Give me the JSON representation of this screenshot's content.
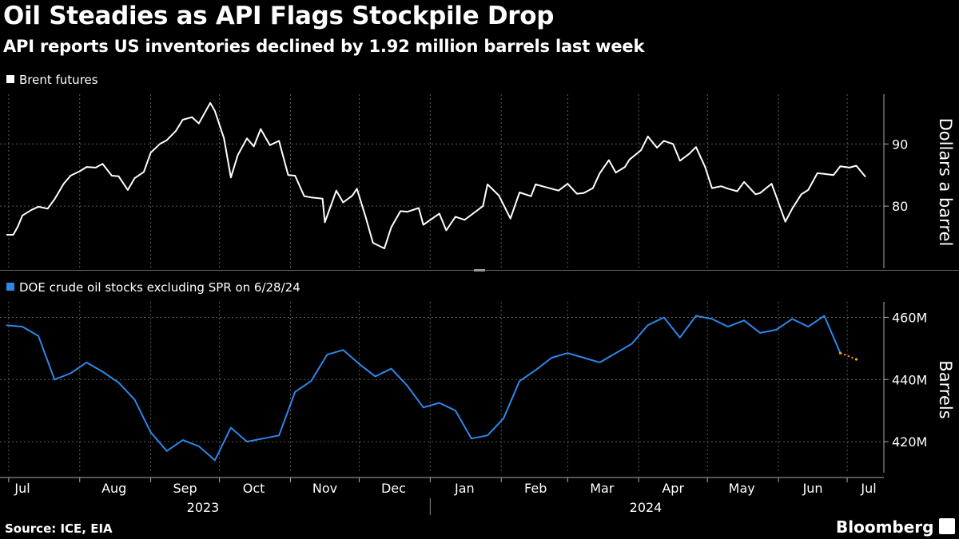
{
  "title": "Oil Steadies as API Flags Stockpile Drop",
  "subtitle": "API reports US inventories declined by 1.92 million barrels last week",
  "source": "Source: ICE, EIA",
  "brand": "Bloomberg",
  "colors": {
    "background": "#000000",
    "brent": "#ffffff",
    "stocks": "#2e87e8",
    "projection": "#f5a623",
    "grid": "#666666"
  },
  "chart_data": [
    {
      "type": "line",
      "legend": "Brent futures",
      "ylabel": "Dollars a barrel",
      "ylim": [
        70,
        98
      ],
      "yticks": [
        80,
        90
      ],
      "grid": true,
      "legend_position": "top-left",
      "x_time_label": "date (approx.)",
      "series": [
        {
          "name": "Brent futures",
          "points": [
            [
              "2023-06-30",
              75.4
            ],
            [
              "2023-07-03",
              75.4
            ],
            [
              "2023-07-05",
              76.7
            ],
            [
              "2023-07-07",
              78.5
            ],
            [
              "2023-07-11",
              79.4
            ],
            [
              "2023-07-14",
              79.9
            ],
            [
              "2023-07-18",
              79.6
            ],
            [
              "2023-07-21",
              81.1
            ],
            [
              "2023-07-25",
              83.6
            ],
            [
              "2023-07-28",
              84.9
            ],
            [
              "2023-08-01",
              85.6
            ],
            [
              "2023-08-04",
              86.3
            ],
            [
              "2023-08-08",
              86.2
            ],
            [
              "2023-08-11",
              86.8
            ],
            [
              "2023-08-15",
              84.9
            ],
            [
              "2023-08-18",
              84.8
            ],
            [
              "2023-08-22",
              82.6
            ],
            [
              "2023-08-25",
              84.5
            ],
            [
              "2023-08-29",
              85.5
            ],
            [
              "2023-09-01",
              88.6
            ],
            [
              "2023-09-05",
              90.0
            ],
            [
              "2023-09-08",
              90.6
            ],
            [
              "2023-09-12",
              92.1
            ],
            [
              "2023-09-15",
              93.9
            ],
            [
              "2023-09-19",
              94.3
            ],
            [
              "2023-09-22",
              93.3
            ],
            [
              "2023-09-27",
              96.6
            ],
            [
              "2023-09-29",
              95.3
            ],
            [
              "2023-10-03",
              90.9
            ],
            [
              "2023-10-06",
              84.6
            ],
            [
              "2023-10-09",
              88.2
            ],
            [
              "2023-10-13",
              90.9
            ],
            [
              "2023-10-16",
              89.6
            ],
            [
              "2023-10-19",
              92.4
            ],
            [
              "2023-10-23",
              89.8
            ],
            [
              "2023-10-27",
              90.5
            ],
            [
              "2023-10-31",
              85.0
            ],
            [
              "2023-11-03",
              84.9
            ],
            [
              "2023-11-07",
              81.6
            ],
            [
              "2023-11-10",
              81.4
            ],
            [
              "2023-11-15",
              81.2
            ],
            [
              "2023-11-16",
              77.4
            ],
            [
              "2023-11-21",
              82.5
            ],
            [
              "2023-11-24",
              80.6
            ],
            [
              "2023-11-28",
              81.7
            ],
            [
              "2023-11-30",
              82.8
            ],
            [
              "2023-12-04",
              78.0
            ],
            [
              "2023-12-07",
              74.1
            ],
            [
              "2023-12-12",
              73.2
            ],
            [
              "2023-12-15",
              76.6
            ],
            [
              "2023-12-19",
              79.2
            ],
            [
              "2023-12-22",
              79.1
            ],
            [
              "2023-12-27",
              79.7
            ],
            [
              "2023-12-29",
              77.0
            ],
            [
              "2024-01-03",
              78.3
            ],
            [
              "2024-01-05",
              78.8
            ],
            [
              "2024-01-08",
              76.1
            ],
            [
              "2024-01-12",
              78.3
            ],
            [
              "2024-01-16",
              77.8
            ],
            [
              "2024-01-19",
              78.6
            ],
            [
              "2024-01-24",
              80.0
            ],
            [
              "2024-01-26",
              83.5
            ],
            [
              "2024-01-31",
              81.7
            ],
            [
              "2024-02-05",
              78.0
            ],
            [
              "2024-02-09",
              82.2
            ],
            [
              "2024-02-14",
              81.6
            ],
            [
              "2024-02-16",
              83.5
            ],
            [
              "2024-02-21",
              83.0
            ],
            [
              "2024-02-26",
              82.5
            ],
            [
              "2024-03-01",
              83.6
            ],
            [
              "2024-03-05",
              82.0
            ],
            [
              "2024-03-08",
              82.1
            ],
            [
              "2024-03-12",
              82.9
            ],
            [
              "2024-03-15",
              85.3
            ],
            [
              "2024-03-19",
              87.4
            ],
            [
              "2024-03-22",
              85.4
            ],
            [
              "2024-03-26",
              86.3
            ],
            [
              "2024-03-28",
              87.5
            ],
            [
              "2024-04-02",
              89.0
            ],
            [
              "2024-04-05",
              91.2
            ],
            [
              "2024-04-09",
              89.4
            ],
            [
              "2024-04-12",
              90.5
            ],
            [
              "2024-04-16",
              90.0
            ],
            [
              "2024-04-19",
              87.3
            ],
            [
              "2024-04-23",
              88.4
            ],
            [
              "2024-04-26",
              89.5
            ],
            [
              "2024-04-30",
              86.3
            ],
            [
              "2024-05-03",
              82.9
            ],
            [
              "2024-05-07",
              83.2
            ],
            [
              "2024-05-10",
              82.8
            ],
            [
              "2024-05-14",
              82.4
            ],
            [
              "2024-05-17",
              83.9
            ],
            [
              "2024-05-22",
              81.9
            ],
            [
              "2024-05-24",
              82.1
            ],
            [
              "2024-05-29",
              83.6
            ],
            [
              "2024-05-31",
              81.6
            ],
            [
              "2024-06-04",
              77.5
            ],
            [
              "2024-06-07",
              79.6
            ],
            [
              "2024-06-11",
              81.9
            ],
            [
              "2024-06-14",
              82.6
            ],
            [
              "2024-06-18",
              85.3
            ],
            [
              "2024-06-21",
              85.2
            ],
            [
              "2024-06-25",
              85.0
            ],
            [
              "2024-06-28",
              86.4
            ],
            [
              "2024-07-02",
              86.2
            ],
            [
              "2024-07-05",
              86.5
            ],
            [
              "2024-07-09",
              84.7
            ]
          ]
        }
      ]
    },
    {
      "type": "line",
      "legend": "DOE crude oil stocks excluding SPR on 6/28/24",
      "ylabel": "Barrels",
      "ylim": [
        410,
        465
      ],
      "yticks": [
        420,
        440,
        460
      ],
      "ytick_labels": [
        "420M",
        "440M",
        "460M"
      ],
      "grid": true,
      "legend_position": "top-left",
      "series": [
        {
          "name": "DOE crude oil stocks excluding SPR",
          "points": [
            [
              "2023-06-30",
              457.5
            ],
            [
              "2023-07-07",
              457.0
            ],
            [
              "2023-07-14",
              454.0
            ],
            [
              "2023-07-21",
              440.0
            ],
            [
              "2023-07-28",
              442.0
            ],
            [
              "2023-08-04",
              445.5
            ],
            [
              "2023-08-11",
              442.5
            ],
            [
              "2023-08-18",
              439.0
            ],
            [
              "2023-08-25",
              433.5
            ],
            [
              "2023-09-01",
              423.0
            ],
            [
              "2023-09-08",
              417.0
            ],
            [
              "2023-09-15",
              420.5
            ],
            [
              "2023-09-22",
              418.5
            ],
            [
              "2023-09-29",
              414.0
            ],
            [
              "2023-10-06",
              424.5
            ],
            [
              "2023-10-13",
              420.0
            ],
            [
              "2023-10-20",
              421.0
            ],
            [
              "2023-10-27",
              422.0
            ],
            [
              "2023-11-03",
              436.0
            ],
            [
              "2023-11-10",
              439.5
            ],
            [
              "2023-11-17",
              448.0
            ],
            [
              "2023-11-24",
              449.5
            ],
            [
              "2023-12-01",
              445.0
            ],
            [
              "2023-12-08",
              441.0
            ],
            [
              "2023-12-15",
              443.5
            ],
            [
              "2023-12-22",
              438.0
            ],
            [
              "2023-12-29",
              431.0
            ],
            [
              "2024-01-05",
              432.5
            ],
            [
              "2024-01-12",
              430.0
            ],
            [
              "2024-01-19",
              421.0
            ],
            [
              "2024-01-26",
              422.0
            ],
            [
              "2024-02-02",
              427.5
            ],
            [
              "2024-02-09",
              439.5
            ],
            [
              "2024-02-16",
              443.0
            ],
            [
              "2024-02-23",
              447.0
            ],
            [
              "2024-03-01",
              448.5
            ],
            [
              "2024-03-08",
              447.0
            ],
            [
              "2024-03-15",
              445.5
            ],
            [
              "2024-03-22",
              448.5
            ],
            [
              "2024-03-29",
              451.5
            ],
            [
              "2024-04-05",
              457.5
            ],
            [
              "2024-04-12",
              460.0
            ],
            [
              "2024-04-19",
              453.5
            ],
            [
              "2024-04-26",
              460.5
            ],
            [
              "2024-05-03",
              459.5
            ],
            [
              "2024-05-10",
              457.0
            ],
            [
              "2024-05-17",
              459.0
            ],
            [
              "2024-05-24",
              455.0
            ],
            [
              "2024-05-31",
              456.0
            ],
            [
              "2024-06-07",
              459.5
            ],
            [
              "2024-06-14",
              457.0
            ],
            [
              "2024-06-21",
              460.5
            ],
            [
              "2024-06-28",
              448.5
            ]
          ]
        },
        {
          "name": "projection",
          "style": "dotted",
          "points": [
            [
              "2024-06-28",
              448.5
            ],
            [
              "2024-07-05",
              446.5
            ]
          ]
        }
      ]
    }
  ],
  "x_axis": {
    "months": [
      "Jul",
      "Aug",
      "Sep",
      "Oct",
      "Nov",
      "Dec",
      "Jan",
      "Feb",
      "Mar",
      "Apr",
      "May",
      "Jun",
      "Jul"
    ],
    "years": [
      "2023",
      "2024"
    ]
  }
}
